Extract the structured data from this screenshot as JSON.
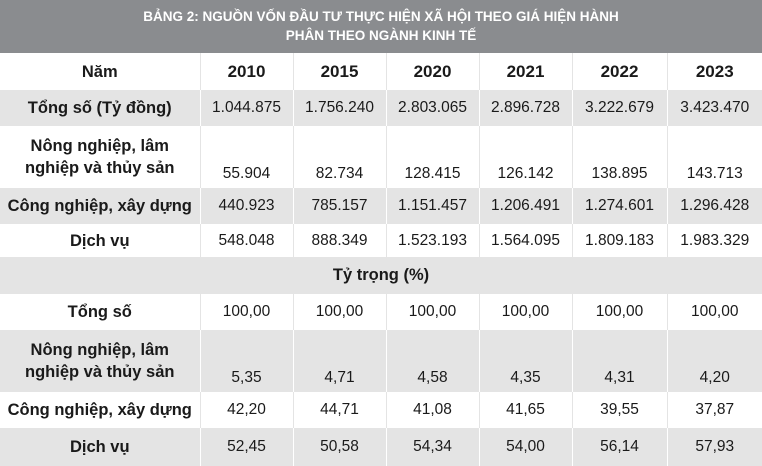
{
  "title_line1": "BẢNG 2: NGUỒN VỐN ĐẦU TƯ THỰC HIỆN XÃ HỘI THEO GIÁ HIỆN HÀNH",
  "title_line2": "PHÂN THEO NGÀNH KINH TẾ",
  "header": {
    "label": "Năm",
    "years": [
      "2010",
      "2015",
      "2020",
      "2021",
      "2022",
      "2023"
    ]
  },
  "rows_value": [
    {
      "label": "Tổng số (Tỷ đồng)",
      "values": [
        "1.044.875",
        "1.756.240",
        "2.803.065",
        "2.896.728",
        "3.222.679",
        "3.423.470"
      ]
    },
    {
      "label_line1": "Nông nghiệp, lâm",
      "label_line2": "nghiệp và thủy sản",
      "values": [
        "55.904",
        "82.734",
        "128.415",
        "126.142",
        "138.895",
        "143.713"
      ]
    },
    {
      "label": "Công nghiệp, xây dựng",
      "values": [
        "440.923",
        "785.157",
        "1.151.457",
        "1.206.491",
        "1.274.601",
        "1.296.428"
      ]
    },
    {
      "label": "Dịch vụ",
      "values": [
        "548.048",
        "888.349",
        "1.523.193",
        "1.564.095",
        "1.809.183",
        "1.983.329"
      ]
    }
  ],
  "section_title": "Tỷ trọng (%)",
  "rows_share": [
    {
      "label": "Tổng số",
      "values": [
        "100,00",
        "100,00",
        "100,00",
        "100,00",
        "100,00",
        "100,00"
      ]
    },
    {
      "label_line1": "Nông nghiệp, lâm",
      "label_line2": "nghiệp và thủy sản",
      "values": [
        "5,35",
        "4,71",
        "4,58",
        "4,35",
        "4,31",
        "4,20"
      ]
    },
    {
      "label": "Công nghiệp, xây dựng",
      "values": [
        "42,20",
        "44,71",
        "41,08",
        "41,65",
        "39,55",
        "37,87"
      ]
    },
    {
      "label": "Dịch vụ",
      "values": [
        "52,45",
        "50,58",
        "54,34",
        "54,00",
        "56,14",
        "57,93"
      ]
    }
  ]
}
